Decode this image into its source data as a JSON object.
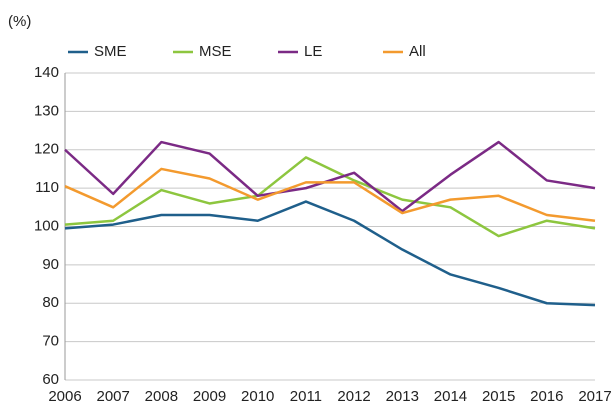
{
  "chart_data": {
    "type": "line",
    "y_label": "(%)",
    "categories": [
      "2006",
      "2007",
      "2008",
      "2009",
      "2010",
      "2011",
      "2012",
      "2013",
      "2014",
      "2015",
      "2016",
      "2017"
    ],
    "series": [
      {
        "name": "SME",
        "color": "#1f5f8b",
        "values": [
          99.5,
          100.5,
          103,
          103,
          101.5,
          106.5,
          101.5,
          94,
          87.5,
          84,
          80,
          79.5
        ]
      },
      {
        "name": "MSE",
        "color": "#8dc63f",
        "values": [
          100.5,
          101.5,
          109.5,
          106,
          108,
          118,
          112,
          107,
          105,
          97.5,
          101.5,
          99.5
        ]
      },
      {
        "name": "LE",
        "color": "#7b2a85",
        "values": [
          120,
          108.5,
          122,
          119,
          108,
          110,
          114,
          104,
          113.5,
          122,
          112,
          110
        ]
      },
      {
        "name": "All",
        "color": "#f39a2e",
        "values": [
          110.5,
          105,
          115,
          112.5,
          107,
          111.5,
          111.5,
          103.5,
          107,
          108,
          103,
          101.5
        ]
      }
    ],
    "ylim": [
      60,
      140
    ],
    "yticks": [
      60,
      70,
      80,
      90,
      100,
      110,
      120,
      130,
      140
    ],
    "grid": true
  }
}
